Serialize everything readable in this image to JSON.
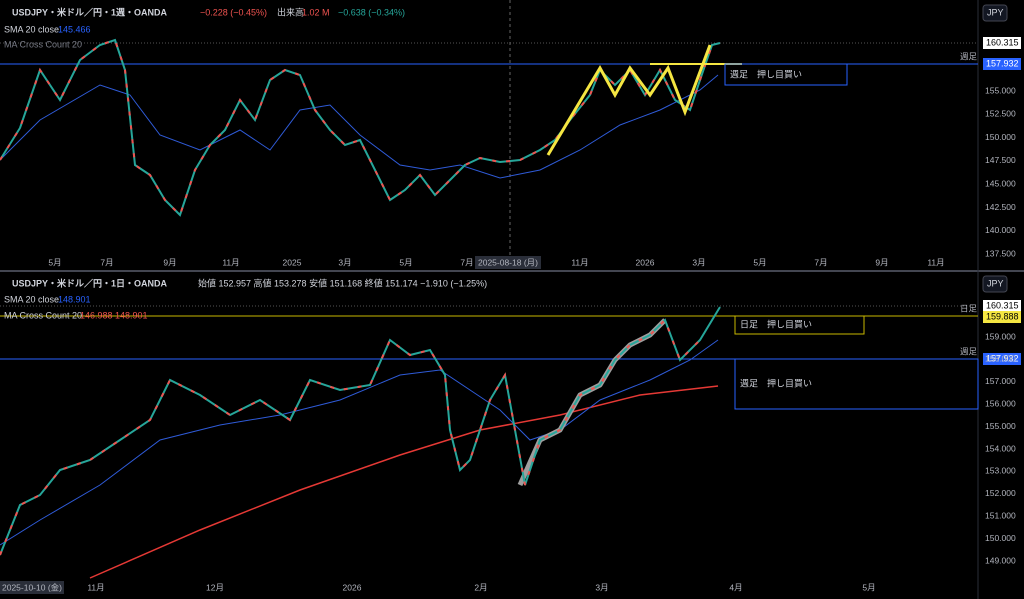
{
  "top": {
    "symbol": "USDJPY・米ドル／円・1週・OANDA",
    "change": "−0.228 (−0.45%)",
    "volume_label": "出来高",
    "volume": "1.02 M",
    "volume_change": "−0.638 (−0.34%)",
    "sma": "SMA 20 close",
    "sma_value": "145.466",
    "ma_cross": "MA Cross Count 20",
    "currency": "JPY",
    "price_tag": "160.315",
    "level_tag": "157.932",
    "level_label": "週足",
    "note": "週足　押し目買い",
    "yticks": [
      "155.000",
      "152.500",
      "150.000",
      "147.500",
      "145.000",
      "142.500",
      "140.000",
      "137.500"
    ],
    "xticks": [
      "5月",
      "7月",
      "9月",
      "11月",
      "2025",
      "3月",
      "5月",
      "7月",
      "2025-08-18 (月)",
      "11月",
      "2026",
      "3月",
      "5月",
      "7月",
      "9月",
      "11月"
    ]
  },
  "bottom": {
    "symbol": "USDJPY・米ドル／円・1日・OANDA",
    "ohlc": "始値 152.957 高値 153.278 安値 151.168 終値 151.174 −1.910 (−1.25%)",
    "sma": "SMA 20 close",
    "sma_value": "148.901",
    "ma_cross": "MA Cross Count 20",
    "ma_values": "146.988 148.901",
    "currency": "JPY",
    "price_tag": "160.315",
    "daily_tag": "159.888",
    "daily_label": "日足",
    "level_tag": "157.932",
    "level_label": "週足",
    "note_daily": "日足　押し目買い",
    "note_weekly": "週足　押し目買い",
    "yticks": [
      "159.000",
      "158.000",
      "157.000",
      "156.000",
      "155.000",
      "154.000",
      "153.000",
      "152.000",
      "151.000",
      "150.000",
      "149.000"
    ],
    "xticks": [
      "2025-10-10 (金)",
      "11月",
      "12月",
      "2026",
      "2月",
      "3月",
      "4月",
      "5月"
    ]
  }
}
